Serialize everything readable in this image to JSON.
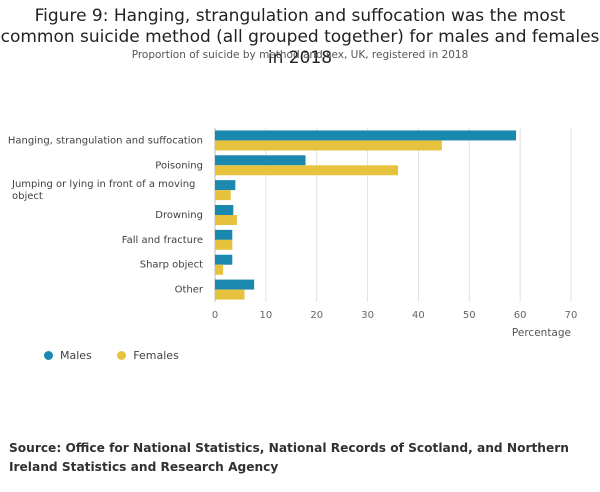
{
  "chart_data": {
    "type": "bar",
    "orientation": "horizontal",
    "title": "Figure 9: Hanging, strangulation and suffocation was the most common suicide method (all grouped together) for males and females in 2018",
    "subtitle": "Proportion of suicide by method and sex, UK, registered in 2018",
    "categories": [
      "Hanging, strangulation and suffocation",
      "Poisoning",
      "Jumping or lying in front of a moving object",
      "Drowning",
      "Fall and fracture",
      "Sharp object",
      "Other"
    ],
    "series": [
      {
        "name": "Males",
        "color": "#1b88b0",
        "values": [
          59.2,
          17.8,
          4.0,
          3.6,
          3.4,
          3.4,
          7.7
        ]
      },
      {
        "name": "Females",
        "color": "#e6c23d",
        "values": [
          44.6,
          36.0,
          3.1,
          4.3,
          3.4,
          1.6,
          5.8
        ]
      }
    ],
    "xlabel": "Percentage",
    "ylabel": "",
    "xlim": [
      0,
      70
    ],
    "xticks": [
      0,
      10,
      20,
      30,
      40,
      50,
      60,
      70
    ],
    "grid": true,
    "legend_position": "bottom-left"
  },
  "source": "Source: Office for National Statistics, National Records of Scotland, and Northern Ireland Statistics and Research Agency"
}
